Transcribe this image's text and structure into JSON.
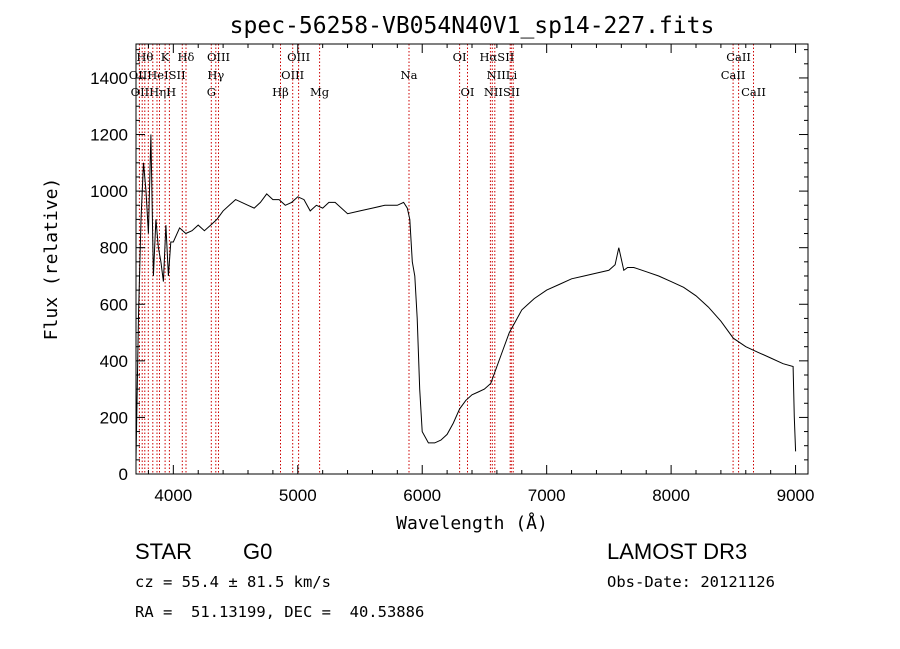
{
  "chart_data": {
    "type": "line",
    "title": "spec-56258-VB054N40V1_sp14-227.fits",
    "xlabel": "Wavelength (Å)",
    "ylabel": "Flux (relative)",
    "xlim": [
      3700,
      9100
    ],
    "ylim": [
      0,
      1520
    ],
    "x_ticks": [
      "4000",
      "5000",
      "6000",
      "7000",
      "8000",
      "9000"
    ],
    "y_ticks": [
      "0",
      "200",
      "400",
      "600",
      "800",
      "1000",
      "1200",
      "1400"
    ],
    "series": [
      {
        "name": "flux",
        "x": [
          3700,
          3720,
          3740,
          3760,
          3780,
          3800,
          3820,
          3840,
          3860,
          3880,
          3900,
          3920,
          3940,
          3960,
          3980,
          4000,
          4050,
          4100,
          4150,
          4200,
          4250,
          4300,
          4350,
          4400,
          4450,
          4500,
          4550,
          4600,
          4650,
          4700,
          4750,
          4800,
          4850,
          4900,
          4950,
          5000,
          5050,
          5100,
          5150,
          5200,
          5250,
          5300,
          5400,
          5500,
          5600,
          5700,
          5800,
          5850,
          5880,
          5900,
          5920,
          5940,
          5960,
          5980,
          6000,
          6050,
          6100,
          6150,
          6200,
          6250,
          6300,
          6350,
          6400,
          6450,
          6500,
          6550,
          6600,
          6650,
          6700,
          6750,
          6800,
          6850,
          6900,
          7000,
          7100,
          7200,
          7300,
          7400,
          7500,
          7550,
          7580,
          7600,
          7620,
          7650,
          7700,
          7800,
          7900,
          8000,
          8100,
          8200,
          8300,
          8400,
          8500,
          8600,
          8700,
          8800,
          8900,
          8980,
          8990,
          9000
        ],
        "values": [
          50,
          560,
          900,
          1100,
          1000,
          850,
          1200,
          700,
          900,
          800,
          750,
          680,
          880,
          700,
          820,
          820,
          870,
          850,
          860,
          880,
          860,
          880,
          900,
          930,
          950,
          970,
          960,
          950,
          940,
          960,
          990,
          970,
          970,
          950,
          960,
          980,
          970,
          930,
          950,
          940,
          960,
          960,
          920,
          930,
          940,
          950,
          950,
          960,
          940,
          900,
          750,
          700,
          550,
          300,
          150,
          110,
          110,
          120,
          140,
          180,
          230,
          260,
          280,
          290,
          300,
          320,
          380,
          440,
          500,
          540,
          580,
          600,
          620,
          650,
          670,
          690,
          700,
          710,
          720,
          740,
          800,
          760,
          720,
          730,
          730,
          715,
          700,
          680,
          660,
          630,
          590,
          540,
          480,
          450,
          430,
          410,
          390,
          380,
          200,
          80
        ]
      }
    ],
    "lines": [
      {
        "wl": 3727,
        "label": "OII"
      },
      {
        "wl": 3750,
        "label": "OII"
      },
      {
        "wl": 3771,
        "label": "Hθ"
      },
      {
        "wl": 3799,
        "label": "Hη"
      },
      {
        "wl": 3835,
        "label": "Hη"
      },
      {
        "wl": 3869,
        "label": "He"
      },
      {
        "wl": 3889,
        "label": "He"
      },
      {
        "wl": 3934,
        "label": "K"
      },
      {
        "wl": 3968,
        "label": "H"
      },
      {
        "wl": 4072,
        "label": "SII"
      },
      {
        "wl": 4102,
        "label": "Hδ"
      },
      {
        "wl": 4305,
        "label": "G"
      },
      {
        "wl": 4341,
        "label": "Hγ"
      },
      {
        "wl": 4363,
        "label": "OIII"
      },
      {
        "wl": 4861,
        "label": "Hβ"
      },
      {
        "wl": 4959,
        "label": "OIII"
      },
      {
        "wl": 5007,
        "label": "OIII"
      },
      {
        "wl": 5175,
        "label": "Mg"
      },
      {
        "wl": 5894,
        "label": "Na"
      },
      {
        "wl": 6300,
        "label": "OI"
      },
      {
        "wl": 6364,
        "label": "OI"
      },
      {
        "wl": 6548,
        "label": "NII"
      },
      {
        "wl": 6563,
        "label": "Hα"
      },
      {
        "wl": 6583,
        "label": "NII"
      },
      {
        "wl": 6707,
        "label": "Li"
      },
      {
        "wl": 6716,
        "label": "SII"
      },
      {
        "wl": 6731,
        "label": "SII"
      },
      {
        "wl": 8498,
        "label": "CaII"
      },
      {
        "wl": 8542,
        "label": "CaII"
      },
      {
        "wl": 8662,
        "label": "CaII"
      }
    ],
    "line_labels": [
      {
        "text": "Hθ",
        "wl": 3771,
        "row": 0
      },
      {
        "text": "K",
        "wl": 3934,
        "row": 0
      },
      {
        "text": "Hδ",
        "wl": 4102,
        "row": 0
      },
      {
        "text": "OIII",
        "wl": 4363,
        "row": 0
      },
      {
        "text": "OIII",
        "wl": 5007,
        "row": 0
      },
      {
        "text": "OI",
        "wl": 6300,
        "row": 0
      },
      {
        "text": "HαSII",
        "wl": 6600,
        "row": 0
      },
      {
        "text": "CaII",
        "wl": 8542,
        "row": 0
      },
      {
        "text": "OIIHeISII",
        "wl": 3870,
        "row": 1
      },
      {
        "text": "Hγ",
        "wl": 4341,
        "row": 1
      },
      {
        "text": "OIII",
        "wl": 4959,
        "row": 1
      },
      {
        "text": "Na",
        "wl": 5894,
        "row": 1
      },
      {
        "text": "NIILi",
        "wl": 6640,
        "row": 1
      },
      {
        "text": "CaII",
        "wl": 8498,
        "row": 1
      },
      {
        "text": "OIIHηH",
        "wl": 3840,
        "row": 2
      },
      {
        "text": "G",
        "wl": 4305,
        "row": 2
      },
      {
        "text": "Hβ",
        "wl": 4861,
        "row": 2
      },
      {
        "text": "Mg",
        "wl": 5175,
        "row": 2
      },
      {
        "text": "OI",
        "wl": 6364,
        "row": 2
      },
      {
        "text": "NIISII",
        "wl": 6640,
        "row": 2
      },
      {
        "text": "CaII",
        "wl": 8662,
        "row": 2
      }
    ],
    "colors": {
      "spectrum": "#000000",
      "line_marker": "#cc0000",
      "axes": "#000000"
    }
  },
  "info": {
    "class": "STAR",
    "subclass": "G0",
    "survey": "LAMOST DR3",
    "cz": "cz = 55.4 ± 81.5 km/s",
    "obs_date": "Obs-Date: 20121126",
    "coords": "RA =  51.13199, DEC =  40.53886"
  }
}
